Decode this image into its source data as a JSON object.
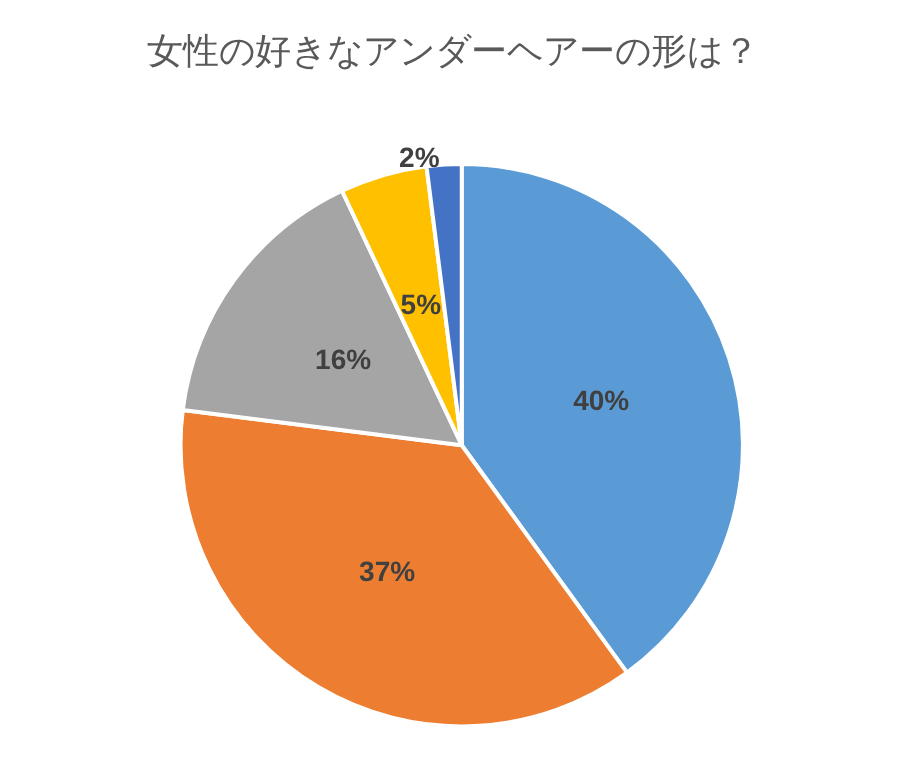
{
  "chart_data": {
    "type": "pie",
    "title": "女性の好きなアンダーヘアーの形は？",
    "categories": [
      null,
      null,
      null,
      null,
      null
    ],
    "values": [
      40,
      37,
      16,
      5,
      2
    ],
    "value_labels": [
      "40%",
      "37%",
      "16%",
      "5%",
      "2%"
    ],
    "colors": [
      "#5b9bd5",
      "#ed7d31",
      "#a5a5a5",
      "#ffc000",
      "#4472c4"
    ]
  }
}
